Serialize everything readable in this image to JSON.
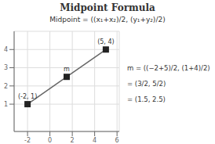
{
  "chart_data": {
    "type": "line",
    "title": "Midpoint Formula",
    "subtitle": "Midpoint = ((x₁+x₂)/2, (y₁+y₂)/2)",
    "x": [
      -2,
      1.5,
      5
    ],
    "series": [
      {
        "type": "line",
        "color": "#666666",
        "values": [
          1,
          2.5,
          4
        ]
      },
      {
        "type": "scatter",
        "marker": "square",
        "color": "#222222",
        "values": [
          1,
          2.5,
          4
        ]
      }
    ],
    "annotations": [
      {
        "text": "(-2, 1)",
        "x": -2,
        "y": 1
      },
      {
        "text": "m",
        "x": 1.5,
        "y": 2.5
      },
      {
        "text": "(5, 4)",
        "x": 5,
        "y": 4
      },
      {
        "text": "m = ((−2+5)/2, (1+4)/2)"
      },
      {
        "text": "= (3/2, 5/2)"
      },
      {
        "text": "= (1.5, 2.5)"
      }
    ],
    "xlim": [
      -3.2,
      6.2
    ],
    "ylim": [
      -0.5,
      5.0
    ],
    "xticks": [
      -2,
      0,
      2,
      4,
      6
    ],
    "yticks": [
      1,
      2,
      3,
      4
    ],
    "grid": true
  }
}
